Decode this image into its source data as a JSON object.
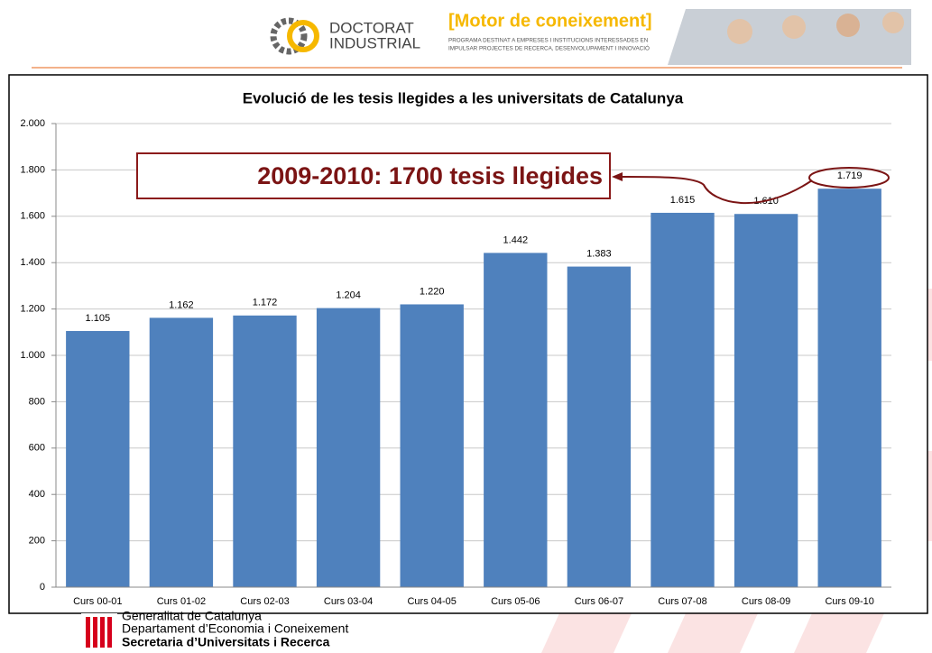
{
  "header": {
    "logo_line1": "DOCTORAT",
    "logo_line2": "INDUSTRIAL",
    "tagline": "[Motor de coneixement]",
    "program_line1": "PROGRAMA DESTINAT A EMPRESES I INSTITUCIONS INTERESSADES EN",
    "program_line2": "IMPULSAR PROJECTES DE RECERCA, DESENVOLUPAMENT I INNOVACIÓ"
  },
  "chart_data": {
    "type": "bar",
    "title": "Evolució de les tesis llegides a les universitats de Catalunya",
    "categories": [
      "Curs 00-01",
      "Curs 01-02",
      "Curs 02-03",
      "Curs 03-04",
      "Curs 04-05",
      "Curs 05-06",
      "Curs 06-07",
      "Curs 07-08",
      "Curs 08-09",
      "Curs 09-10"
    ],
    "values": [
      1105,
      1162,
      1172,
      1204,
      1220,
      1442,
      1383,
      1615,
      1610,
      1719
    ],
    "value_labels": [
      "1.105",
      "1.162",
      "1.172",
      "1.204",
      "1.220",
      "1.442",
      "1.383",
      "1.615",
      "1.610",
      "1.719"
    ],
    "color": "#4f81bd",
    "ylim": [
      0,
      2000
    ],
    "yticks": [
      0,
      200,
      400,
      600,
      800,
      {
        "value": 1000,
        "label": "1.000"
      },
      {
        "value": 1200,
        "label": "1.200"
      },
      {
        "value": 1400,
        "label": "1.400"
      },
      {
        "value": 1600,
        "label": "1.600"
      },
      {
        "value": 1800,
        "label": "1.800"
      },
      {
        "value": 2000,
        "label": "2.000"
      }
    ],
    "grid": true,
    "annotation": "2009-2010: 1700 tesis llegides"
  },
  "footer": {
    "line1": "Generalitat de Catalunya",
    "line2": "Departament d’Economia i Coneixement",
    "line3": "Secretaria d’Universitats i Recerca"
  }
}
